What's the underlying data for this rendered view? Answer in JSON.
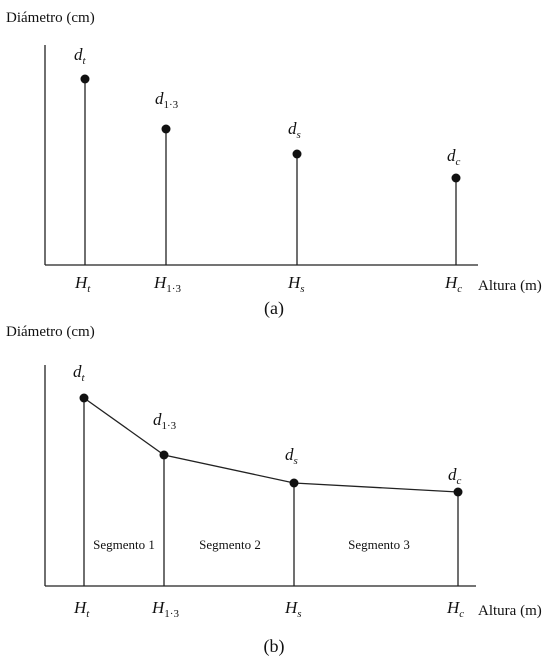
{
  "panels": [
    {
      "y_axis_label": "Diámetro (cm)",
      "x_axis_label": "Altura (m)",
      "caption": "(a)",
      "points": [
        {
          "d": "d",
          "d_sub": "t",
          "d_sub_italic": true,
          "h": "H",
          "h_sub": "t",
          "h_sub_italic": true
        },
        {
          "d": "d",
          "d_sub": "1·3",
          "d_sub_italic": false,
          "h": "H",
          "h_sub": "1·3",
          "h_sub_italic": false
        },
        {
          "d": "d",
          "d_sub": "s",
          "d_sub_italic": true,
          "h": "H",
          "h_sub": "s",
          "h_sub_italic": true
        },
        {
          "d": "d",
          "d_sub": "c",
          "d_sub_italic": true,
          "h": "H",
          "h_sub": "c",
          "h_sub_italic": true
        }
      ]
    },
    {
      "y_axis_label": "Diámetro (cm)",
      "x_axis_label": "Altura (m)",
      "caption": "(b)",
      "points": [
        {
          "d": "d",
          "d_sub": "t",
          "d_sub_italic": true,
          "h": "H",
          "h_sub": "t",
          "h_sub_italic": true
        },
        {
          "d": "d",
          "d_sub": "1·3",
          "d_sub_italic": false,
          "h": "H",
          "h_sub": "1·3",
          "h_sub_italic": false
        },
        {
          "d": "d",
          "d_sub": "s",
          "d_sub_italic": true,
          "h": "H",
          "h_sub": "s",
          "h_sub_italic": true
        },
        {
          "d": "d",
          "d_sub": "c",
          "d_sub_italic": true,
          "h": "H",
          "h_sub": "c",
          "h_sub_italic": true
        }
      ],
      "segments": [
        "Segmento 1",
        "Segmento 2",
        "Segmento 3"
      ]
    }
  ]
}
